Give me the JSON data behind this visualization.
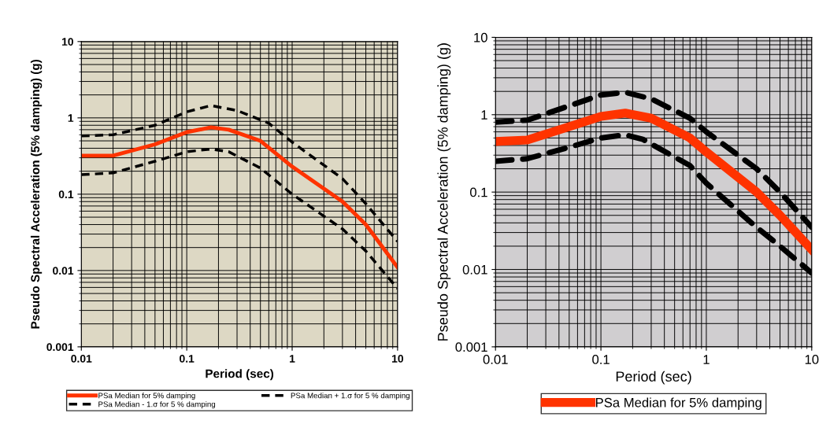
{
  "chart_data": [
    {
      "type": "line",
      "xlabel": "Period (sec)",
      "ylabel": "Pseudo Spectral Acceleration (5% damping) (g)",
      "log": "xy",
      "grid": true,
      "legend": "bottom",
      "xlim": [
        0.01,
        10
      ],
      "xticks": [
        0.01,
        0.1,
        1,
        10
      ],
      "ylim": [
        0.001,
        10
      ],
      "yticks": [
        0.001,
        0.01,
        0.1,
        1,
        10
      ],
      "series": [
        {
          "name": "PSa Median for 5% damping",
          "color": "#ff3300",
          "line_style": "solid",
          "x": [
            0.01,
            0.02,
            0.05,
            0.1,
            0.17,
            0.25,
            0.5,
            1,
            3,
            5,
            10
          ],
          "values": [
            0.32,
            0.32,
            0.45,
            0.65,
            0.75,
            0.7,
            0.5,
            0.23,
            0.08,
            0.04,
            0.011
          ]
        },
        {
          "name": "PSa Median + 1.σ for 5 % damping",
          "color": "#000000",
          "line_style": "dashed",
          "x": [
            0.01,
            0.02,
            0.05,
            0.1,
            0.17,
            0.3,
            0.6,
            1,
            3,
            5,
            10
          ],
          "values": [
            0.58,
            0.6,
            0.8,
            1.2,
            1.45,
            1.25,
            0.85,
            0.48,
            0.16,
            0.075,
            0.024
          ]
        },
        {
          "name": "PSa Median - 1.σ for 5 % damping",
          "color": "#000000",
          "line_style": "dashed",
          "x": [
            0.01,
            0.02,
            0.05,
            0.1,
            0.17,
            0.25,
            0.5,
            1,
            3,
            5,
            10
          ],
          "values": [
            0.18,
            0.19,
            0.27,
            0.36,
            0.39,
            0.36,
            0.22,
            0.1,
            0.035,
            0.018,
            0.0058
          ]
        }
      ]
    },
    {
      "type": "line",
      "xlabel": "Period (sec)",
      "ylabel": "Pseudo Spectral Acceleration (5% damping) (g)",
      "log": "xy",
      "grid": true,
      "legend": "bottom",
      "xlim": [
        0.01,
        10
      ],
      "xticks": [
        0.01,
        0.1,
        1,
        10
      ],
      "ylim": [
        0.001,
        10
      ],
      "yticks": [
        0.001,
        0.01,
        0.1,
        1,
        10
      ],
      "series": [
        {
          "name": "PSa Median for 5% damping",
          "color": "#ff3300",
          "line_style": "solid",
          "x": [
            0.01,
            0.02,
            0.05,
            0.1,
            0.17,
            0.3,
            0.7,
            1,
            3,
            5,
            10
          ],
          "values": [
            0.45,
            0.47,
            0.7,
            0.95,
            1.05,
            0.9,
            0.5,
            0.33,
            0.1,
            0.05,
            0.018
          ]
        },
        {
          "color": "#000000",
          "line_style": "dashed",
          "x": [
            0.01,
            0.02,
            0.05,
            0.1,
            0.17,
            0.3,
            0.7,
            1,
            3,
            5,
            10
          ],
          "values": [
            0.8,
            0.85,
            1.3,
            1.8,
            1.95,
            1.6,
            0.9,
            0.6,
            0.2,
            0.1,
            0.035
          ]
        },
        {
          "color": "#000000",
          "line_style": "dashed",
          "x": [
            0.01,
            0.02,
            0.05,
            0.1,
            0.17,
            0.25,
            0.7,
            1,
            3,
            5,
            10
          ],
          "values": [
            0.25,
            0.27,
            0.38,
            0.5,
            0.55,
            0.48,
            0.22,
            0.13,
            0.035,
            0.02,
            0.009
          ]
        }
      ]
    }
  ]
}
